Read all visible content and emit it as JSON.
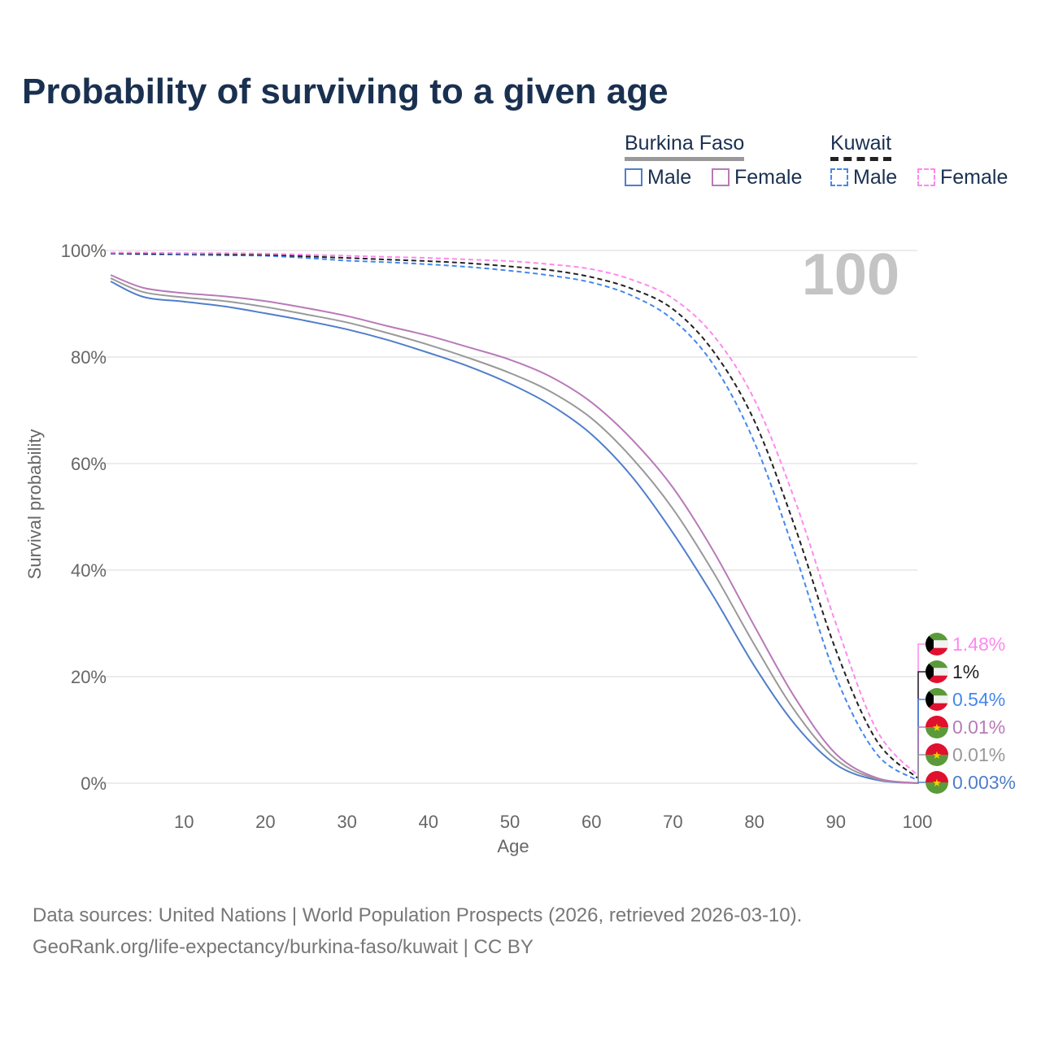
{
  "title": "Probability of surviving to a given age",
  "legend": {
    "groups": [
      {
        "label": "Burkina Faso",
        "line_color": "#999999",
        "dashed": false,
        "items": [
          {
            "label": "Male",
            "color": "#4f7ecb"
          },
          {
            "label": "Female",
            "color": "#b87ab8"
          }
        ]
      },
      {
        "label": "Kuwait",
        "line_color": "#222222",
        "dashed": true,
        "items": [
          {
            "label": "Male",
            "color": "#4488ee"
          },
          {
            "label": "Female",
            "color": "#ff88ee"
          }
        ]
      }
    ]
  },
  "footer": {
    "line1": "Data sources: United Nations | World Population Prospects (2026, retrieved 2026-03-10).",
    "line2": "GeoRank.org/life-expectancy/burkina-faso/kuwait | CC BY"
  },
  "chart_data": {
    "type": "line",
    "title": "Probability of surviving to a given age",
    "xlabel": "Age",
    "ylabel": "Survival probability",
    "xlim": [
      0,
      100
    ],
    "ylim": [
      0,
      100
    ],
    "xticks": [
      "10",
      "20",
      "30",
      "40",
      "50",
      "60",
      "70",
      "80",
      "90",
      "100"
    ],
    "yticks": [
      "0%",
      "20%",
      "40%",
      "60%",
      "80%",
      "100%"
    ],
    "grid": true,
    "age_marker": "100",
    "x": [
      1,
      5,
      10,
      15,
      20,
      25,
      30,
      35,
      40,
      45,
      50,
      55,
      60,
      65,
      70,
      75,
      80,
      85,
      90,
      95,
      100
    ],
    "series": [
      {
        "name": "Kuwait Female",
        "color": "#ff88ee",
        "dashed": true,
        "flag": "kuwait",
        "end_label": "1.48%",
        "values": [
          99.6,
          99.6,
          99.5,
          99.5,
          99.4,
          99.2,
          99,
          98.8,
          98.6,
          98.3,
          98,
          97.4,
          96.5,
          94.5,
          91,
          84,
          72,
          53,
          30,
          10,
          1.48
        ]
      },
      {
        "name": "Kuwait Total",
        "color": "#222222",
        "dashed": true,
        "flag": "kuwait",
        "end_label": "1%",
        "values": [
          99.5,
          99.4,
          99.4,
          99.3,
          99.2,
          98.9,
          98.6,
          98.3,
          98,
          97.6,
          97,
          96.3,
          95,
          92.8,
          89,
          81,
          68,
          48,
          25,
          8,
          1
        ]
      },
      {
        "name": "Kuwait Male",
        "color": "#4488ee",
        "dashed": true,
        "flag": "kuwait",
        "end_label": "0.54%",
        "values": [
          99.4,
          99.3,
          99.2,
          99.1,
          99,
          98.6,
          98.1,
          97.8,
          97.4,
          96.9,
          96.2,
          95.3,
          94,
          91.5,
          87,
          78.5,
          64,
          43,
          20,
          5.5,
          0.54
        ]
      },
      {
        "name": "Burkina Faso Female",
        "color": "#b87ab8",
        "dashed": false,
        "flag": "burkina",
        "end_label": "0.01%",
        "values": [
          95.4,
          93,
          92,
          91.4,
          90.5,
          89.2,
          87.7,
          85.8,
          84,
          81.8,
          79.5,
          76.3,
          71.5,
          64.5,
          55.5,
          43.5,
          29.5,
          16,
          5.5,
          1,
          0.01
        ]
      },
      {
        "name": "Burkina Faso Total",
        "color": "#999999",
        "dashed": false,
        "flag": "burkina",
        "end_label": "0.01%",
        "values": [
          94.8,
          92.2,
          91.2,
          90.5,
          89.4,
          88,
          86.5,
          84.5,
          82.3,
          79.8,
          77,
          73.5,
          68.5,
          61,
          51.5,
          39.5,
          26,
          13.5,
          4.5,
          0.8,
          0.01
        ]
      },
      {
        "name": "Burkina Faso Male",
        "color": "#4f7ecb",
        "dashed": false,
        "flag": "burkina",
        "end_label": "0.003%",
        "values": [
          94.2,
          91.3,
          90.4,
          89.5,
          88.2,
          86.8,
          85.2,
          83.2,
          80.8,
          78.2,
          75,
          71,
          65.5,
          57.5,
          47,
          35,
          22,
          11,
          3.5,
          0.6,
          0.003
        ]
      }
    ]
  }
}
